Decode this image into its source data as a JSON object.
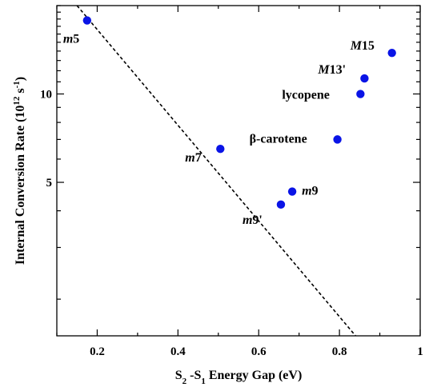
{
  "chart_data": {
    "type": "scatter",
    "title": "",
    "xlabel": {
      "prefix": "S",
      "sub1": "2",
      "mid": " -S",
      "sub2": "1",
      "suffix": " Energy Gap (eV)"
    },
    "ylabel": {
      "prefix": "Internal Conversion Rate (10",
      "sup1": "12",
      "mid": " s",
      "sup2": "-1",
      "suffix": ")"
    },
    "xlim": [
      0.1,
      1.0
    ],
    "ylim_log": [
      1.5,
      20
    ],
    "y_scale": "log",
    "x_ticks": [
      {
        "value": 0.2,
        "label": "0.2"
      },
      {
        "value": 0.4,
        "label": "0.4"
      },
      {
        "value": 0.6,
        "label": "0.6"
      },
      {
        "value": 0.8,
        "label": "0.8"
      },
      {
        "value": 1.0,
        "label": "1"
      }
    ],
    "y_ticks": [
      {
        "value": 5,
        "label": "5"
      },
      {
        "value": 10,
        "label": "10"
      }
    ],
    "points": [
      {
        "x": 0.175,
        "y": 17.8,
        "label": "m5",
        "italic_part": "m",
        "rest": "5"
      },
      {
        "x": 0.505,
        "y": 6.5,
        "label": "m7",
        "italic_part": "m",
        "rest": "7"
      },
      {
        "x": 0.655,
        "y": 4.2,
        "label": "m9'",
        "italic_part": "m",
        "rest": "9'"
      },
      {
        "x": 0.683,
        "y": 4.65,
        "label": "m9",
        "italic_part": "m",
        "rest": "9"
      },
      {
        "x": 0.795,
        "y": 7.0,
        "label": "β-carotene",
        "italic_part": "",
        "rest": "β-carotene"
      },
      {
        "x": 0.852,
        "y": 10.0,
        "label": "lycopene",
        "italic_part": "",
        "rest": "lycopene"
      },
      {
        "x": 0.862,
        "y": 11.3,
        "label": "M13'",
        "italic_part": "M",
        "rest": "13'"
      },
      {
        "x": 0.93,
        "y": 13.8,
        "label": "M15",
        "italic_part": "M",
        "rest": "15"
      }
    ],
    "fit_line": {
      "style": "dashed",
      "from": {
        "x": 0.15,
        "y": 20
      },
      "to": {
        "x": 0.84,
        "y": 1.5
      }
    },
    "point_color": "#0a14e6",
    "line_color": "#000000",
    "grid": false,
    "legend": "none"
  }
}
